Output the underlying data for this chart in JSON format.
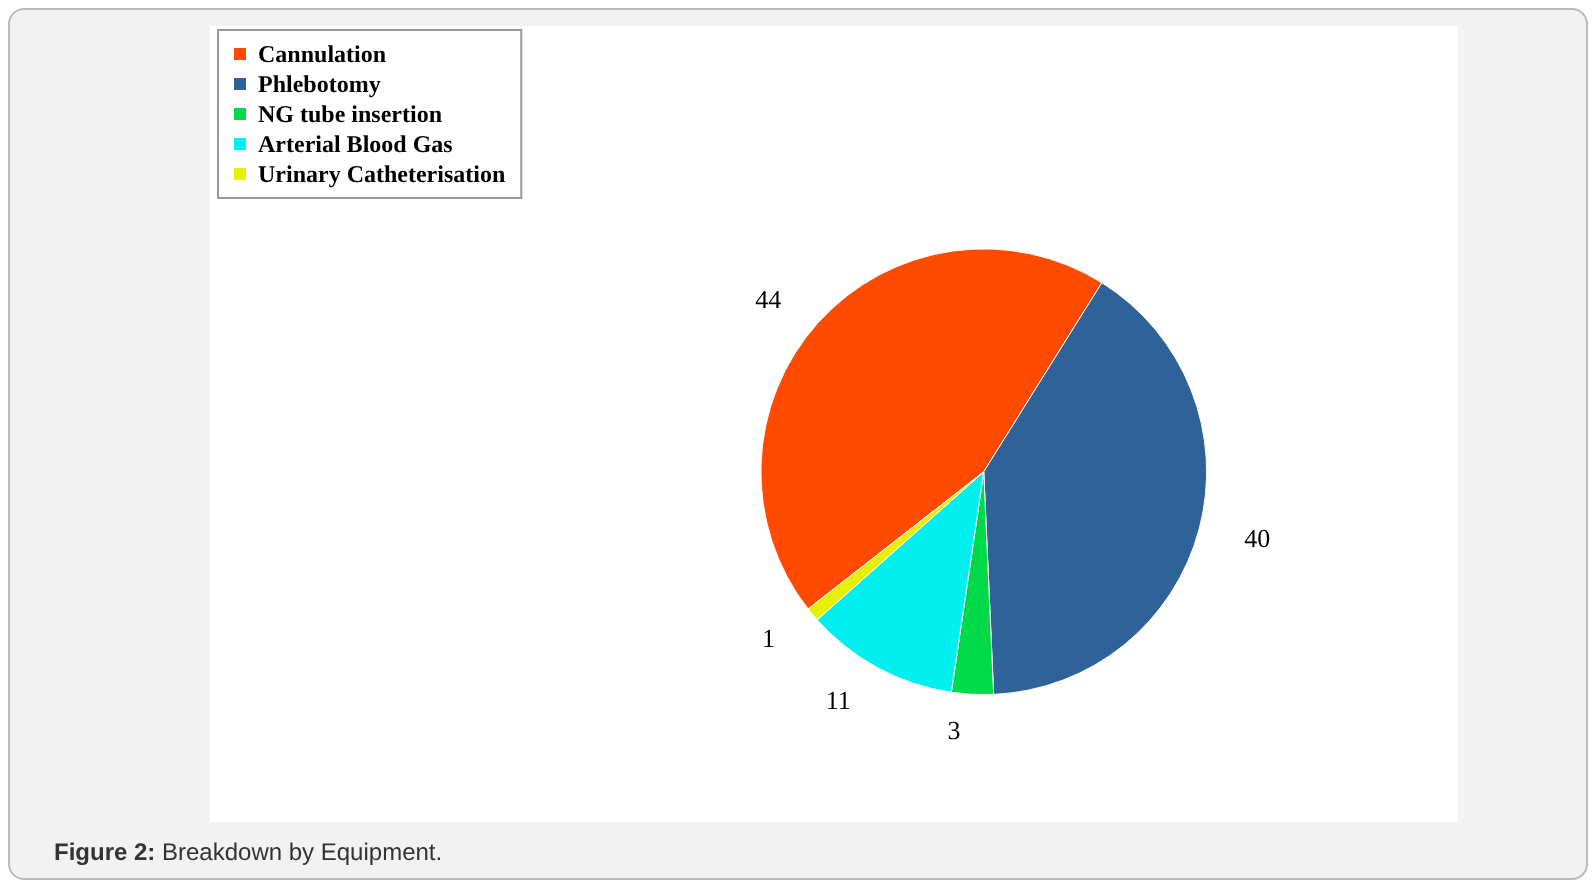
{
  "chart_data": {
    "type": "pie",
    "categories": [
      "Cannulation",
      "Phlebotomy",
      "NG tube insertion",
      "Arterial Blood Gas",
      "Urinary Catheterisation"
    ],
    "values": [
      44,
      40,
      3,
      11,
      1
    ],
    "colors": [
      "#ff4a00",
      "#2e6299",
      "#00d94a",
      "#00f0f0",
      "#e6f000"
    ],
    "data_labels": true,
    "legend": "top left",
    "annotations": [
      "Figure 2: Breakdown by Equipment."
    ]
  }
}
